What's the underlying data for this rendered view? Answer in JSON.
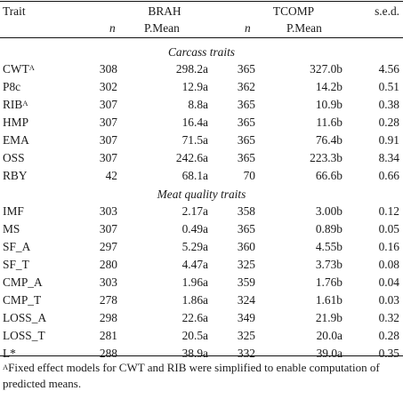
{
  "header": {
    "trait": "Trait",
    "brah": "BRAH",
    "tcomp": "TCOMP",
    "sed": "s.e.d.",
    "n": "n",
    "pmean": "P.Mean"
  },
  "sections": [
    {
      "title": "Carcass traits",
      "rows": [
        {
          "trait": "CWT",
          "sup": "A",
          "n1": "308",
          "m1": "298.2a",
          "n2": "365",
          "m2": "327.0b",
          "sed": "4.56"
        },
        {
          "trait": "P8c",
          "sup": "",
          "n1": "302",
          "m1": "12.9a",
          "n2": "362",
          "m2": "14.2b",
          "sed": "0.51"
        },
        {
          "trait": "RIB",
          "sup": "A",
          "n1": "307",
          "m1": "8.8a",
          "n2": "365",
          "m2": "10.9b",
          "sed": "0.38"
        },
        {
          "trait": "HMP",
          "sup": "",
          "n1": "307",
          "m1": "16.4a",
          "n2": "365",
          "m2": "11.6b",
          "sed": "0.28"
        },
        {
          "trait": "EMA",
          "sup": "",
          "n1": "307",
          "m1": "71.5a",
          "n2": "365",
          "m2": "76.4b",
          "sed": "0.91"
        },
        {
          "trait": "OSS",
          "sup": "",
          "n1": "307",
          "m1": "242.6a",
          "n2": "365",
          "m2": "223.3b",
          "sed": "8.34"
        },
        {
          "trait": "RBY",
          "sup": "",
          "n1": "42",
          "m1": "68.1a",
          "n2": "70",
          "m2": "66.6b",
          "sed": "0.66"
        }
      ]
    },
    {
      "title": "Meat quality traits",
      "rows": [
        {
          "trait": "IMF",
          "sup": "",
          "n1": "303",
          "m1": "2.17a",
          "n2": "358",
          "m2": "3.00b",
          "sed": "0.12"
        },
        {
          "trait": "MS",
          "sup": "",
          "n1": "307",
          "m1": "0.49a",
          "n2": "365",
          "m2": "0.89b",
          "sed": "0.05"
        },
        {
          "trait": "SF_A",
          "sup": "",
          "n1": "297",
          "m1": "5.29a",
          "n2": "360",
          "m2": "4.55b",
          "sed": "0.16"
        },
        {
          "trait": "SF_T",
          "sup": "",
          "n1": "280",
          "m1": "4.47a",
          "n2": "325",
          "m2": "3.73b",
          "sed": "0.08"
        },
        {
          "trait": "CMP_A",
          "sup": "",
          "n1": "303",
          "m1": "1.96a",
          "n2": "359",
          "m2": "1.76b",
          "sed": "0.04"
        },
        {
          "trait": "CMP_T",
          "sup": "",
          "n1": "278",
          "m1": "1.86a",
          "n2": "324",
          "m2": "1.61b",
          "sed": "0.03"
        },
        {
          "trait": "LOSS_A",
          "sup": "",
          "n1": "298",
          "m1": "22.6a",
          "n2": "349",
          "m2": "21.9b",
          "sed": "0.32"
        },
        {
          "trait": "LOSS_T",
          "sup": "",
          "n1": "281",
          "m1": "20.5a",
          "n2": "325",
          "m2": "20.0a",
          "sed": "0.28"
        },
        {
          "trait": "L*",
          "sup": "",
          "n1": "288",
          "m1": "38.9a",
          "n2": "332",
          "m2": "39.0a",
          "sed": "0.35"
        }
      ]
    }
  ],
  "footnote": {
    "marker": "A",
    "text": "Fixed effect models for CWT and RIB were simplified to enable computation of predicted means."
  }
}
